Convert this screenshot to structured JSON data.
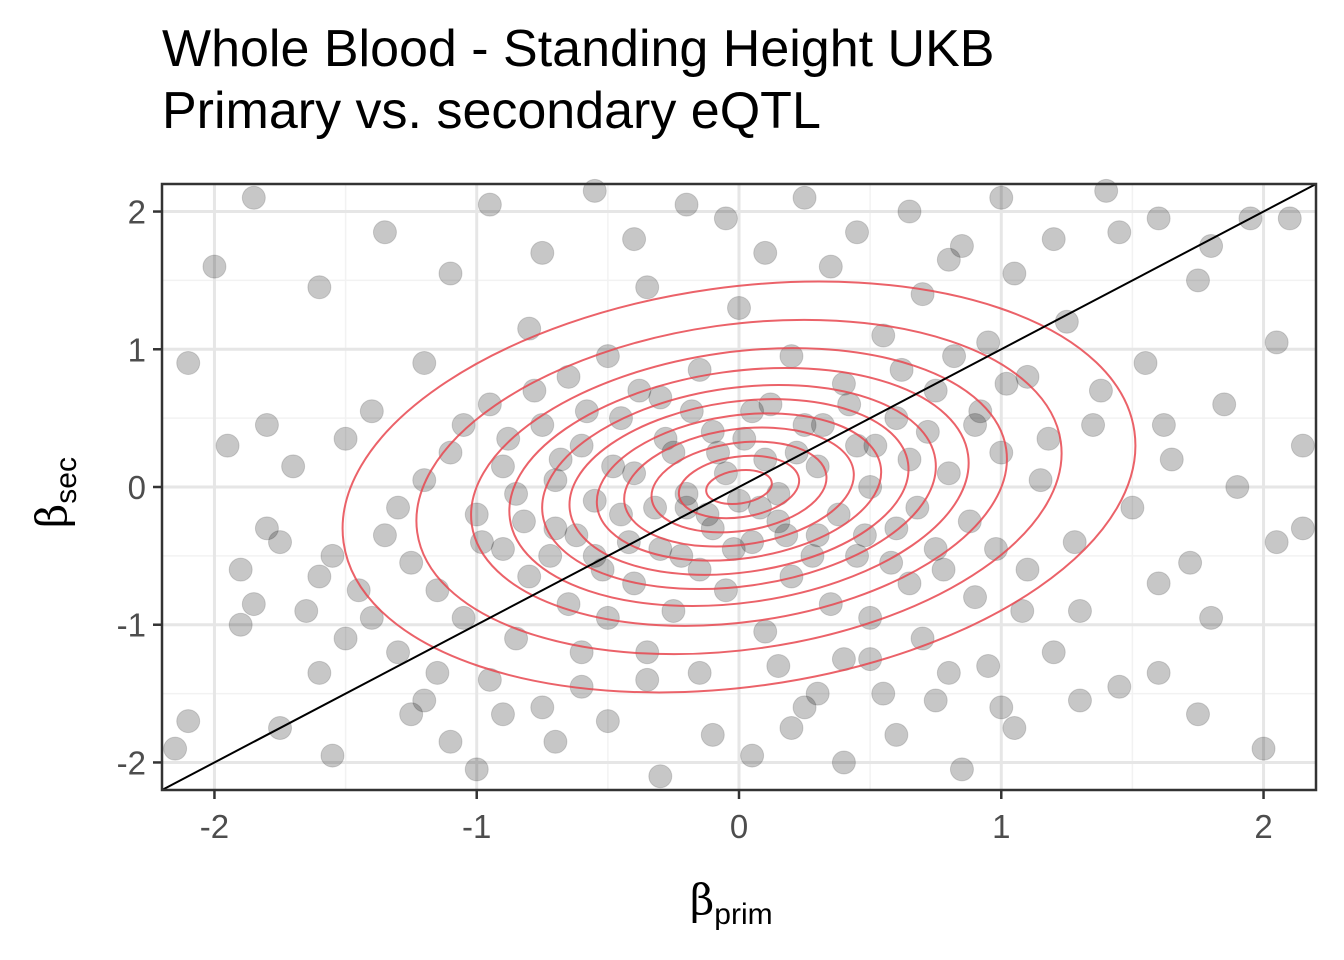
{
  "title": {
    "line1": "Whole Blood - Standing Height UKB",
    "line2": "Primary vs. secondary eQTL"
  },
  "axes": {
    "x_symbol": "β",
    "x_subscript": "prim",
    "y_symbol": "β",
    "y_subscript": "sec"
  },
  "colors": {
    "points": "#000000",
    "points_opacity": 0.22,
    "contour": "#e8474f",
    "identity_line": "#000000",
    "grid_major": "#e6e6e6",
    "panel_border": "#333333"
  },
  "chart_data": {
    "type": "scatter",
    "title": "Whole Blood - Standing Height UKB\nPrimary vs. secondary eQTL",
    "xlabel": "β_prim",
    "ylabel": "β_sec",
    "xlim": [
      -2.2,
      2.2
    ],
    "ylim": [
      -2.2,
      2.2
    ],
    "xticks": [
      -2,
      -1,
      0,
      1,
      2
    ],
    "yticks": [
      -2,
      -1,
      0,
      1,
      2
    ],
    "xtick_labels": [
      "-2",
      "-1",
      "0",
      "1",
      "2"
    ],
    "ytick_labels": [
      "-2",
      "-1",
      "0",
      "1",
      "2"
    ],
    "grid": true,
    "legend": "none",
    "overlays": [
      "2D density contours",
      "identity line y = x"
    ],
    "series": [
      {
        "points": [
          [
            -2.1,
            -1.7
          ],
          [
            -2.15,
            -1.9
          ],
          [
            -1.9,
            -1.0
          ],
          [
            -1.85,
            -0.85
          ],
          [
            -1.75,
            -1.75
          ],
          [
            -1.6,
            -1.35
          ],
          [
            -1.5,
            -1.1
          ],
          [
            -1.45,
            -0.75
          ],
          [
            -1.3,
            -1.2
          ],
          [
            -1.25,
            -0.55
          ],
          [
            -1.2,
            -1.55
          ],
          [
            -1.1,
            -1.85
          ],
          [
            -1.05,
            -0.95
          ],
          [
            -0.95,
            -1.4
          ],
          [
            -0.9,
            -0.45
          ],
          [
            -0.85,
            -1.1
          ],
          [
            -0.8,
            -0.65
          ],
          [
            -0.75,
            -1.6
          ],
          [
            -0.7,
            -0.3
          ],
          [
            -0.65,
            -0.85
          ],
          [
            -0.6,
            -1.2
          ],
          [
            -0.55,
            -0.5
          ],
          [
            -0.5,
            -0.95
          ],
          [
            -0.45,
            -0.2
          ],
          [
            -0.4,
            -0.7
          ],
          [
            -0.35,
            -1.4
          ],
          [
            -0.3,
            -0.45
          ],
          [
            -0.25,
            -0.9
          ],
          [
            -0.2,
            -0.15
          ],
          [
            -0.15,
            -0.6
          ],
          [
            -0.1,
            -0.3
          ],
          [
            -0.05,
            -0.75
          ],
          [
            0.0,
            -0.1
          ],
          [
            0.05,
            -0.4
          ],
          [
            0.1,
            -1.05
          ],
          [
            0.15,
            -0.25
          ],
          [
            0.2,
            -0.65
          ],
          [
            0.25,
            -1.6
          ],
          [
            0.3,
            -0.35
          ],
          [
            0.35,
            -0.85
          ],
          [
            0.4,
            -1.25
          ],
          [
            0.45,
            -0.5
          ],
          [
            0.5,
            -0.95
          ],
          [
            0.55,
            -1.5
          ],
          [
            0.6,
            -0.3
          ],
          [
            0.65,
            -0.7
          ],
          [
            0.7,
            -1.1
          ],
          [
            0.75,
            -0.45
          ],
          [
            0.8,
            -1.35
          ],
          [
            0.9,
            -0.8
          ],
          [
            1.0,
            -1.6
          ],
          [
            1.1,
            -0.6
          ],
          [
            1.2,
            -1.2
          ],
          [
            1.3,
            -0.9
          ],
          [
            1.45,
            -1.45
          ],
          [
            1.6,
            -0.7
          ],
          [
            1.8,
            -0.95
          ],
          [
            2.0,
            -1.9
          ],
          [
            -1.95,
            0.3
          ],
          [
            -1.8,
            -0.3
          ],
          [
            -1.7,
            0.15
          ],
          [
            -1.55,
            -0.5
          ],
          [
            -1.4,
            0.55
          ],
          [
            -1.3,
            -0.15
          ],
          [
            -1.2,
            0.9
          ],
          [
            -1.1,
            0.25
          ],
          [
            -1.0,
            -0.2
          ],
          [
            -0.95,
            0.6
          ],
          [
            -0.9,
            0.15
          ],
          [
            -0.85,
            -0.05
          ],
          [
            -0.8,
            1.15
          ],
          [
            -0.75,
            0.45
          ],
          [
            -0.7,
            0.05
          ],
          [
            -0.65,
            0.8
          ],
          [
            -0.6,
            0.3
          ],
          [
            -0.55,
            -0.1
          ],
          [
            -0.5,
            0.95
          ],
          [
            -0.45,
            0.5
          ],
          [
            -0.4,
            0.1
          ],
          [
            -0.35,
            1.45
          ],
          [
            -0.3,
            0.65
          ],
          [
            -0.25,
            0.25
          ],
          [
            -0.2,
            -0.05
          ],
          [
            -0.15,
            0.85
          ],
          [
            -0.1,
            0.4
          ],
          [
            -0.05,
            0.1
          ],
          [
            0.0,
            1.3
          ],
          [
            0.05,
            0.55
          ],
          [
            0.1,
            0.2
          ],
          [
            0.15,
            -0.05
          ],
          [
            0.2,
            0.95
          ],
          [
            0.25,
            0.45
          ],
          [
            0.3,
            0.15
          ],
          [
            0.35,
            1.6
          ],
          [
            0.4,
            0.75
          ],
          [
            0.45,
            0.3
          ],
          [
            0.5,
            0.0
          ],
          [
            0.55,
            1.1
          ],
          [
            0.6,
            0.5
          ],
          [
            0.65,
            0.2
          ],
          [
            0.7,
            1.4
          ],
          [
            0.75,
            0.7
          ],
          [
            0.8,
            0.1
          ],
          [
            0.85,
            1.75
          ],
          [
            0.9,
            0.45
          ],
          [
            0.95,
            1.05
          ],
          [
            1.0,
            0.25
          ],
          [
            1.05,
            1.55
          ],
          [
            1.1,
            0.8
          ],
          [
            1.15,
            0.05
          ],
          [
            1.25,
            1.2
          ],
          [
            1.35,
            0.45
          ],
          [
            1.45,
            1.85
          ],
          [
            1.55,
            0.9
          ],
          [
            1.65,
            0.2
          ],
          [
            1.75,
            1.5
          ],
          [
            1.85,
            0.6
          ],
          [
            1.95,
            1.95
          ],
          [
            2.05,
            1.05
          ],
          [
            2.15,
            0.3
          ],
          [
            -2.0,
            1.6
          ],
          [
            -1.85,
            2.1
          ],
          [
            -1.6,
            1.45
          ],
          [
            -1.35,
            1.85
          ],
          [
            -1.1,
            1.55
          ],
          [
            -0.95,
            2.05
          ],
          [
            -0.75,
            1.7
          ],
          [
            -0.55,
            2.15
          ],
          [
            -0.4,
            1.8
          ],
          [
            -0.2,
            2.05
          ],
          [
            -0.05,
            1.95
          ],
          [
            0.1,
            1.7
          ],
          [
            0.25,
            2.1
          ],
          [
            0.45,
            1.85
          ],
          [
            0.65,
            2.0
          ],
          [
            0.8,
            1.65
          ],
          [
            1.0,
            2.1
          ],
          [
            1.2,
            1.8
          ],
          [
            1.4,
            2.15
          ],
          [
            1.6,
            1.95
          ],
          [
            1.8,
            1.75
          ],
          [
            2.1,
            1.95
          ],
          [
            -2.1,
            0.9
          ],
          [
            -1.9,
            -0.6
          ],
          [
            -1.65,
            -0.9
          ],
          [
            -1.5,
            0.35
          ],
          [
            -1.35,
            -0.35
          ],
          [
            -1.2,
            0.05
          ],
          [
            -1.15,
            -0.75
          ],
          [
            -1.05,
            0.45
          ],
          [
            -0.98,
            -0.4
          ],
          [
            -0.88,
            0.35
          ],
          [
            -0.82,
            -0.25
          ],
          [
            -0.78,
            0.7
          ],
          [
            -0.72,
            -0.5
          ],
          [
            -0.68,
            0.2
          ],
          [
            -0.62,
            -0.35
          ],
          [
            -0.58,
            0.55
          ],
          [
            -0.52,
            -0.6
          ],
          [
            -0.48,
            0.15
          ],
          [
            -0.42,
            -0.4
          ],
          [
            -0.38,
            0.7
          ],
          [
            -0.32,
            -0.15
          ],
          [
            -0.28,
            0.35
          ],
          [
            -0.22,
            -0.5
          ],
          [
            -0.18,
            0.55
          ],
          [
            -0.12,
            -0.2
          ],
          [
            -0.08,
            0.25
          ],
          [
            -0.02,
            -0.45
          ],
          [
            0.02,
            0.35
          ],
          [
            0.08,
            -0.15
          ],
          [
            0.12,
            0.6
          ],
          [
            0.18,
            -0.35
          ],
          [
            0.22,
            0.25
          ],
          [
            0.28,
            -0.5
          ],
          [
            0.32,
            0.45
          ],
          [
            0.38,
            -0.2
          ],
          [
            0.42,
            0.6
          ],
          [
            0.48,
            -0.35
          ],
          [
            0.52,
            0.3
          ],
          [
            0.58,
            -0.55
          ],
          [
            0.62,
            0.85
          ],
          [
            0.68,
            -0.15
          ],
          [
            0.72,
            0.4
          ],
          [
            0.78,
            -0.6
          ],
          [
            0.82,
            0.95
          ],
          [
            0.88,
            -0.25
          ],
          [
            0.92,
            0.55
          ],
          [
            0.98,
            -0.45
          ],
          [
            1.02,
            0.75
          ],
          [
            1.08,
            -0.9
          ],
          [
            1.18,
            0.35
          ],
          [
            1.28,
            -0.4
          ],
          [
            1.38,
            0.7
          ],
          [
            1.5,
            -0.15
          ],
          [
            1.62,
            0.45
          ],
          [
            1.72,
            -0.55
          ],
          [
            1.9,
            0.0
          ],
          [
            2.05,
            -0.4
          ],
          [
            2.15,
            -0.3
          ],
          [
            -1.55,
            -1.95
          ],
          [
            -1.25,
            -1.65
          ],
          [
            -1.0,
            -2.05
          ],
          [
            -0.7,
            -1.85
          ],
          [
            -0.5,
            -1.7
          ],
          [
            -0.3,
            -2.1
          ],
          [
            -0.1,
            -1.8
          ],
          [
            0.05,
            -1.95
          ],
          [
            0.2,
            -1.75
          ],
          [
            0.4,
            -2.0
          ],
          [
            0.6,
            -1.8
          ],
          [
            0.85,
            -2.05
          ],
          [
            1.05,
            -1.75
          ],
          [
            1.3,
            -1.55
          ],
          [
            1.6,
            -1.35
          ],
          [
            1.75,
            -1.65
          ],
          [
            -0.6,
            -1.45
          ],
          [
            -0.35,
            -1.2
          ],
          [
            -0.15,
            -1.35
          ],
          [
            0.15,
            -1.3
          ],
          [
            0.3,
            -1.5
          ],
          [
            0.5,
            -1.25
          ],
          [
            0.75,
            -1.55
          ],
          [
            0.95,
            -1.3
          ],
          [
            -0.9,
            -1.65
          ],
          [
            -1.15,
            -1.35
          ],
          [
            -1.4,
            -0.95
          ],
          [
            -1.6,
            -0.65
          ],
          [
            -1.75,
            -0.4
          ],
          [
            -1.8,
            0.45
          ]
        ]
      }
    ]
  }
}
